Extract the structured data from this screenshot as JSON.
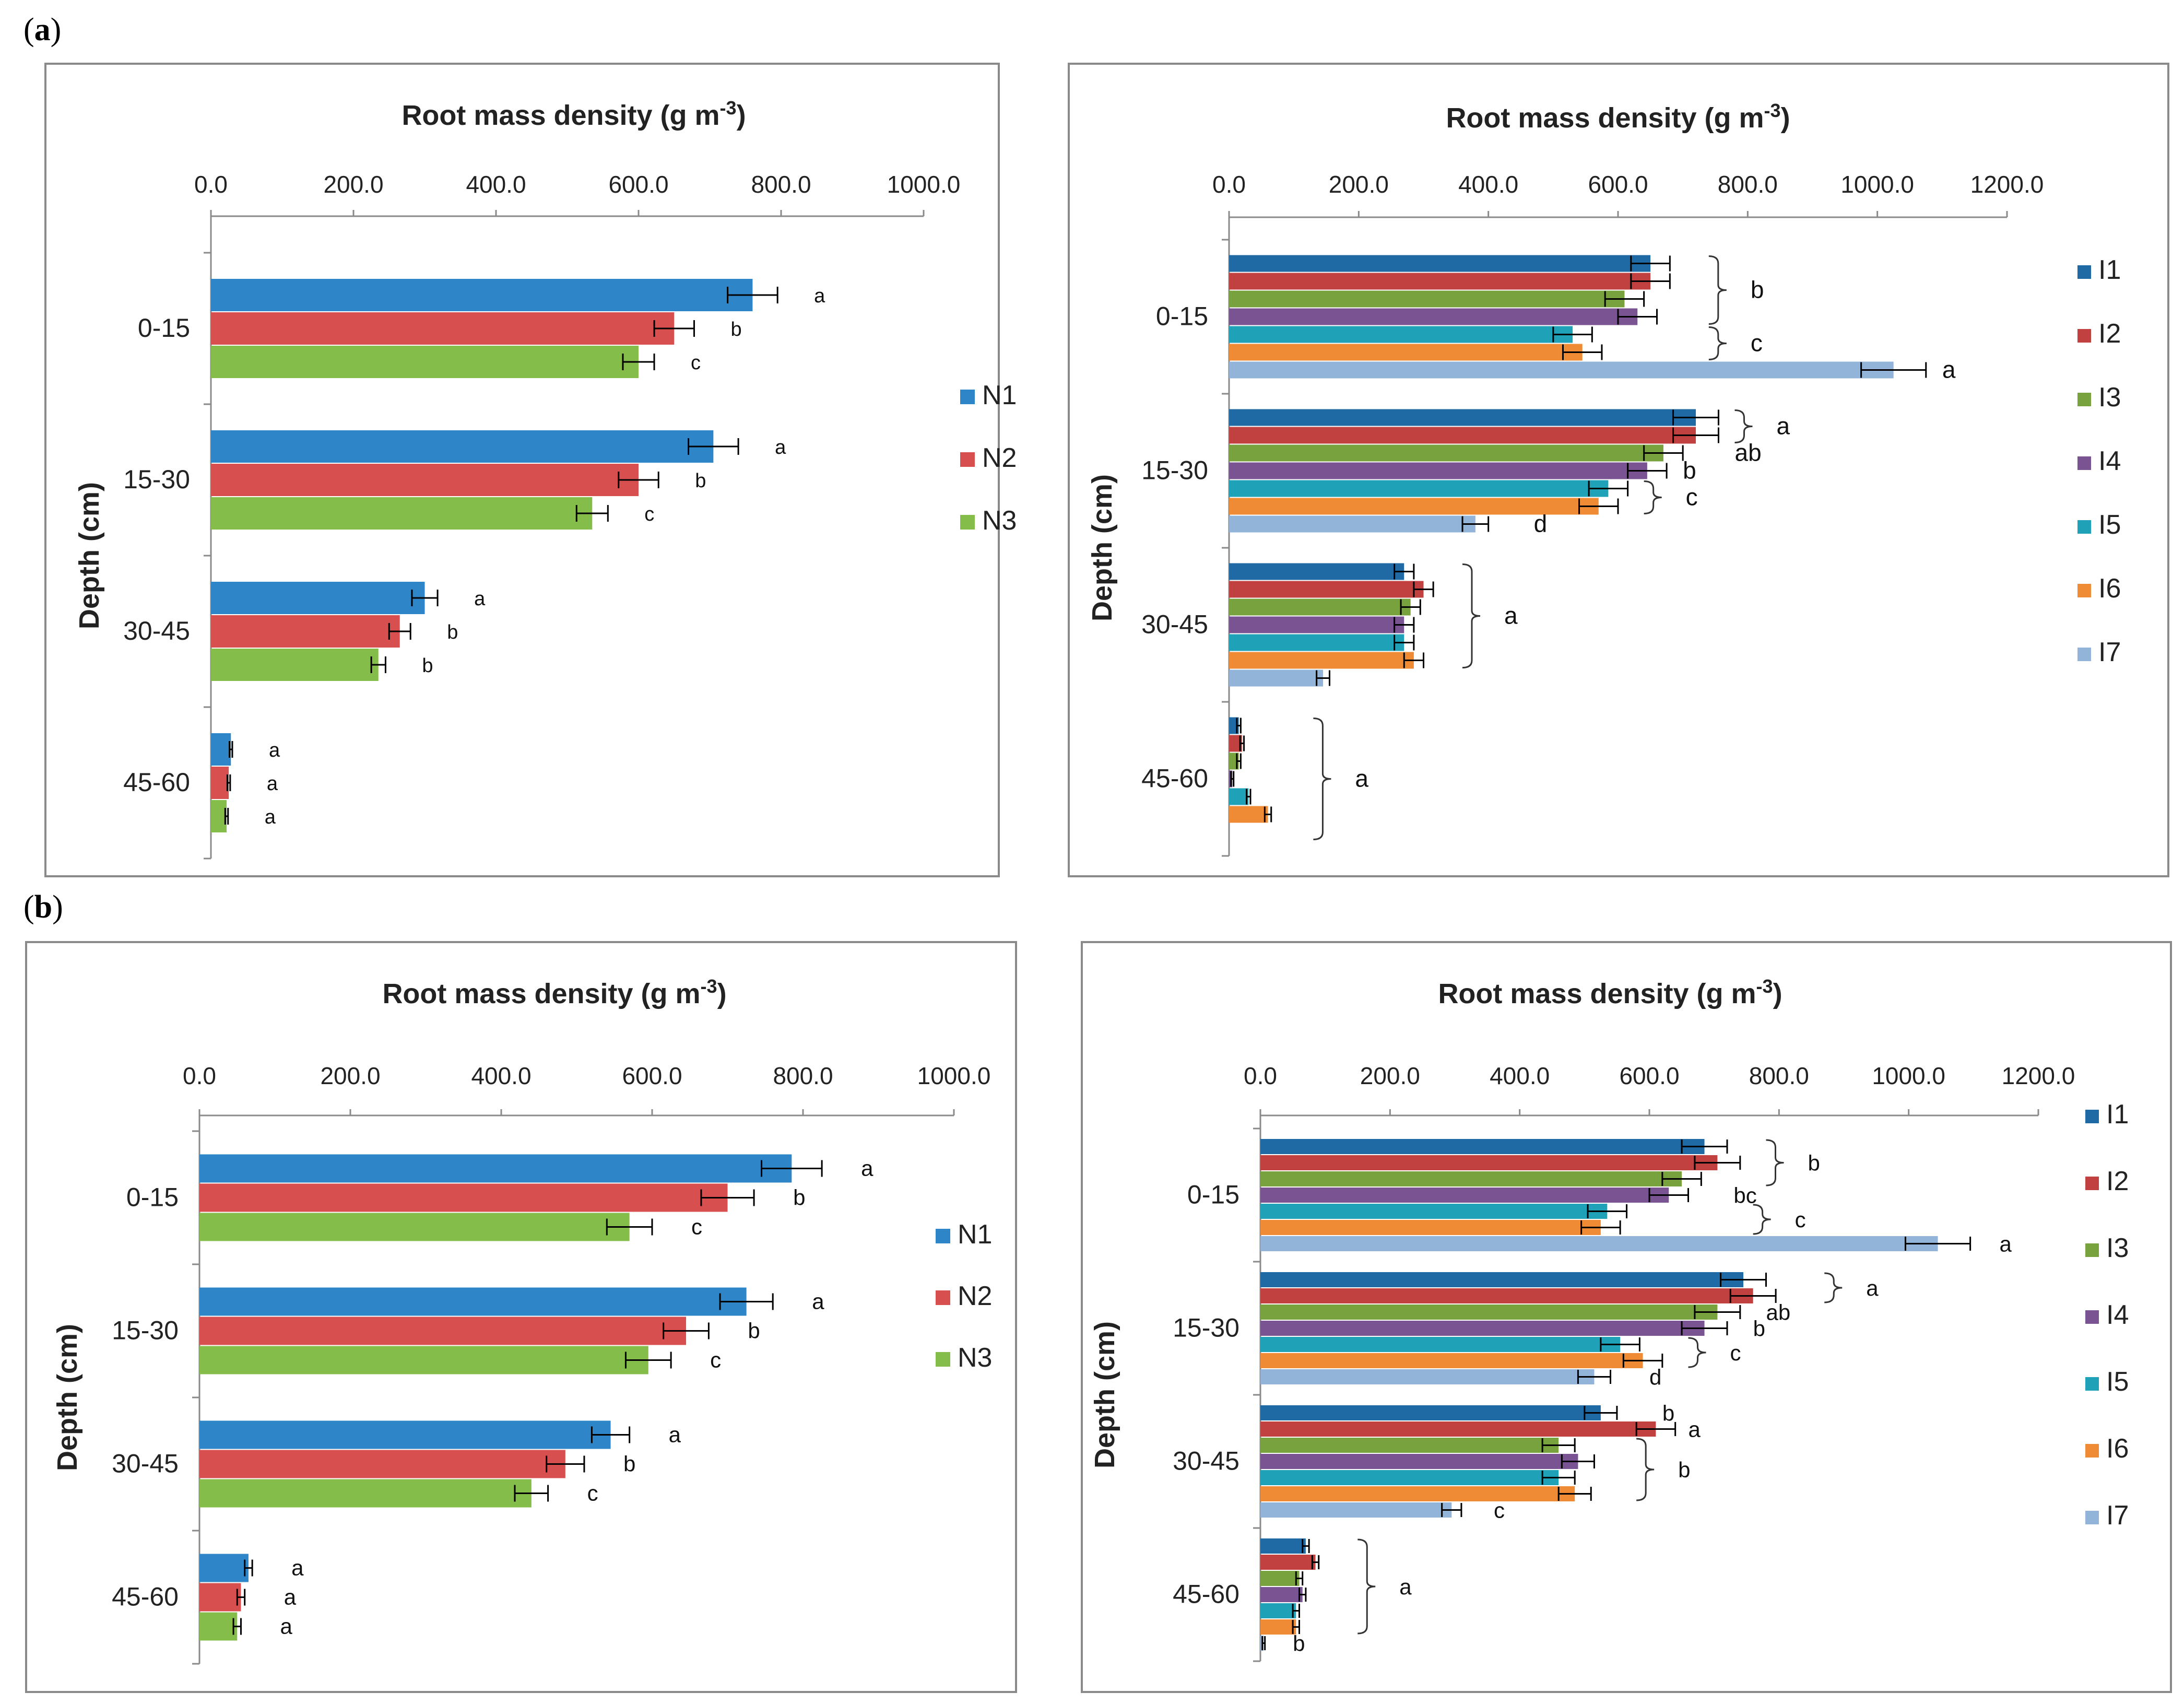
{
  "panels": [
    {
      "label_open": "(",
      "letter": "a",
      "label_close": ")"
    },
    {
      "label_open": "(",
      "letter": "b",
      "label_close": ")"
    }
  ],
  "chart_data": [
    {
      "id": "a-left",
      "type": "bar",
      "orientation": "horizontal",
      "title_main": "Root mass density (g m",
      "title_sup": "-3",
      "title_end": ")",
      "xlabel": "Root mass density (g m-3)",
      "ylabel": "Depth (cm)",
      "xlim": [
        0,
        1000
      ],
      "xticks": [
        "0.0",
        "200.0",
        "400.0",
        "600.0",
        "800.0",
        "1000.0"
      ],
      "categories": [
        "0-15",
        "15-30",
        "30-45",
        "45-60"
      ],
      "legend_position": "right",
      "series": [
        {
          "name": "N1",
          "color": "#2e86c8",
          "values": [
            760,
            705,
            300,
            28
          ],
          "errors": [
            35,
            35,
            18,
            2
          ],
          "letters": [
            "a",
            "a",
            "a",
            "a"
          ]
        },
        {
          "name": "N2",
          "color": "#d84f4f",
          "values": [
            650,
            600,
            265,
            25
          ],
          "errors": [
            28,
            28,
            15,
            2
          ],
          "letters": [
            "b",
            "b",
            "b",
            "a"
          ]
        },
        {
          "name": "N3",
          "color": "#85bd4b",
          "values": [
            600,
            535,
            235,
            22
          ],
          "errors": [
            22,
            22,
            10,
            2
          ],
          "letters": [
            "c",
            "c",
            "b",
            "a"
          ]
        }
      ]
    },
    {
      "id": "a-right",
      "type": "bar",
      "orientation": "horizontal",
      "title_main": "Root mass density (g m",
      "title_sup": "-3",
      "title_end": ")",
      "xlabel": "Root mass density (g m-3)",
      "ylabel": "Depth (cm)",
      "xlim": [
        0,
        1200
      ],
      "xticks": [
        "0.0",
        "200.0",
        "400.0",
        "600.0",
        "800.0",
        "1000.0",
        "1200.0"
      ],
      "categories": [
        "0-15",
        "15-30",
        "30-45",
        "45-60"
      ],
      "legend_position": "right",
      "series": [
        {
          "name": "I1",
          "color": "#1f6aa5",
          "values": [
            650,
            720,
            270,
            15
          ],
          "errors": [
            30,
            35,
            15,
            3
          ]
        },
        {
          "name": "I2",
          "color": "#c0413f",
          "values": [
            650,
            720,
            300,
            20
          ],
          "errors": [
            30,
            35,
            15,
            3
          ]
        },
        {
          "name": "I3",
          "color": "#77a23d",
          "values": [
            610,
            670,
            280,
            15
          ],
          "errors": [
            30,
            30,
            15,
            3
          ]
        },
        {
          "name": "I4",
          "color": "#7a5392",
          "values": [
            630,
            645,
            270,
            5
          ],
          "errors": [
            30,
            30,
            15,
            2
          ]
        },
        {
          "name": "I5",
          "color": "#1fa1b8",
          "values": [
            530,
            585,
            270,
            30
          ],
          "errors": [
            30,
            30,
            15,
            3
          ]
        },
        {
          "name": "I6",
          "color": "#f08b35",
          "values": [
            545,
            570,
            285,
            60
          ],
          "errors": [
            30,
            30,
            15,
            5
          ]
        },
        {
          "name": "I7",
          "color": "#93b4d9",
          "values": [
            1025,
            380,
            145,
            0
          ],
          "errors": [
            50,
            20,
            10,
            0
          ]
        }
      ],
      "annotations": [
        {
          "text": "b",
          "category": "0-15",
          "from": 0,
          "to": 3,
          "x": 740
        },
        {
          "text": "c",
          "category": "0-15",
          "from": 4,
          "to": 5,
          "x": 740
        },
        {
          "text": "a",
          "category": "0-15",
          "from": 6,
          "to": 6,
          "x": 1100,
          "nobrace": true
        },
        {
          "text": "a",
          "category": "15-30",
          "from": 0,
          "to": 1,
          "x": 780
        },
        {
          "text": "ab",
          "category": "15-30",
          "from": 2,
          "to": 2,
          "x": 780,
          "nobrace": true
        },
        {
          "text": "b",
          "category": "15-30",
          "from": 3,
          "to": 3,
          "x": 700,
          "nobrace": true
        },
        {
          "text": "c",
          "category": "15-30",
          "from": 4,
          "to": 5,
          "x": 640
        },
        {
          "text": "d",
          "category": "15-30",
          "from": 6,
          "to": 6,
          "x": 470,
          "nobrace": true
        },
        {
          "text": "a",
          "category": "30-45",
          "from": 0,
          "to": 5,
          "x": 360
        },
        {
          "text": "a",
          "category": "45-60",
          "from": 0,
          "to": 6,
          "x": 130
        }
      ]
    },
    {
      "id": "b-left",
      "type": "bar",
      "orientation": "horizontal",
      "title_main": "Root mass density (g m",
      "title_sup": "-3",
      "title_end": ")",
      "xlabel": "Root mass density (g m-3)",
      "ylabel": "Depth (cm)",
      "xlim": [
        0,
        1000
      ],
      "xticks": [
        "0.0",
        "200.0",
        "400.0",
        "600.0",
        "800.0",
        "1000.0"
      ],
      "categories": [
        "0-15",
        "15-30",
        "30-45",
        "45-60"
      ],
      "legend_position": "right",
      "series": [
        {
          "name": "N1",
          "color": "#2e86c8",
          "values": [
            785,
            725,
            545,
            65
          ],
          "errors": [
            40,
            35,
            25,
            5
          ],
          "letters": [
            "a",
            "a",
            "a",
            "a"
          ]
        },
        {
          "name": "N2",
          "color": "#d84f4f",
          "values": [
            700,
            645,
            485,
            55
          ],
          "errors": [
            35,
            30,
            25,
            5
          ],
          "letters": [
            "b",
            "b",
            "b",
            "a"
          ]
        },
        {
          "name": "N3",
          "color": "#85bd4b",
          "values": [
            570,
            595,
            440,
            50
          ],
          "errors": [
            30,
            30,
            22,
            5
          ],
          "letters": [
            "c",
            "c",
            "c",
            "a"
          ]
        }
      ]
    },
    {
      "id": "b-right",
      "type": "bar",
      "orientation": "horizontal",
      "title_main": "Root mass density (g m",
      "title_sup": "-3",
      "title_end": ")",
      "xlabel": "Root mass density (g m-3)",
      "ylabel": "Depth (cm)",
      "xlim": [
        0,
        1200
      ],
      "xticks": [
        "0.0",
        "200.0",
        "400.0",
        "600.0",
        "800.0",
        "1000.0",
        "1200.0"
      ],
      "categories": [
        "0-15",
        "15-30",
        "30-45",
        "45-60"
      ],
      "legend_position": "right",
      "series": [
        {
          "name": "I1",
          "color": "#1f6aa5",
          "values": [
            685,
            745,
            525,
            70
          ],
          "errors": [
            35,
            35,
            25,
            5
          ]
        },
        {
          "name": "I2",
          "color": "#c0413f",
          "values": [
            705,
            760,
            610,
            85
          ],
          "errors": [
            35,
            35,
            30,
            5
          ]
        },
        {
          "name": "I3",
          "color": "#77a23d",
          "values": [
            650,
            705,
            460,
            60
          ],
          "errors": [
            30,
            35,
            25,
            5
          ]
        },
        {
          "name": "I4",
          "color": "#7a5392",
          "values": [
            630,
            685,
            490,
            65
          ],
          "errors": [
            30,
            35,
            25,
            5
          ]
        },
        {
          "name": "I5",
          "color": "#1fa1b8",
          "values": [
            535,
            555,
            460,
            55
          ],
          "errors": [
            30,
            30,
            25,
            5
          ]
        },
        {
          "name": "I6",
          "color": "#f08b35",
          "values": [
            525,
            590,
            485,
            55
          ],
          "errors": [
            30,
            30,
            25,
            5
          ]
        },
        {
          "name": "I7",
          "color": "#93b4d9",
          "values": [
            1045,
            515,
            295,
            5
          ],
          "errors": [
            50,
            25,
            15,
            2
          ]
        }
      ],
      "annotations": [
        {
          "text": "b",
          "category": "0-15",
          "from": 0,
          "to": 2,
          "x": 780
        },
        {
          "text": "bc",
          "category": "0-15",
          "from": 3,
          "to": 3,
          "x": 730,
          "nobrace": true
        },
        {
          "text": "c",
          "category": "0-15",
          "from": 4,
          "to": 5,
          "x": 760
        },
        {
          "text": "a",
          "category": "0-15",
          "from": 6,
          "to": 6,
          "x": 1140,
          "nobrace": true
        },
        {
          "text": "a",
          "category": "15-30",
          "from": 0,
          "to": 1,
          "x": 870
        },
        {
          "text": "ab",
          "category": "15-30",
          "from": 2,
          "to": 2,
          "x": 780,
          "nobrace": true
        },
        {
          "text": "b",
          "category": "15-30",
          "from": 3,
          "to": 3,
          "x": 760,
          "nobrace": true
        },
        {
          "text": "c",
          "category": "15-30",
          "from": 4,
          "to": 5,
          "x": 660
        },
        {
          "text": "d",
          "category": "15-30",
          "from": 6,
          "to": 6,
          "x": 600,
          "nobrace": true
        },
        {
          "text": "b",
          "category": "30-45",
          "from": 0,
          "to": 0,
          "x": 620,
          "nobrace": true
        },
        {
          "text": "a",
          "category": "30-45",
          "from": 1,
          "to": 1,
          "x": 660,
          "nobrace": true
        },
        {
          "text": "b",
          "category": "30-45",
          "from": 2,
          "to": 5,
          "x": 580
        },
        {
          "text": "c",
          "category": "30-45",
          "from": 6,
          "to": 6,
          "x": 360,
          "nobrace": true
        },
        {
          "text": "a",
          "category": "45-60",
          "from": 0,
          "to": 5,
          "x": 150
        },
        {
          "text": "b",
          "category": "45-60",
          "from": 6,
          "to": 6,
          "x": 50,
          "nobrace": true
        }
      ]
    }
  ]
}
